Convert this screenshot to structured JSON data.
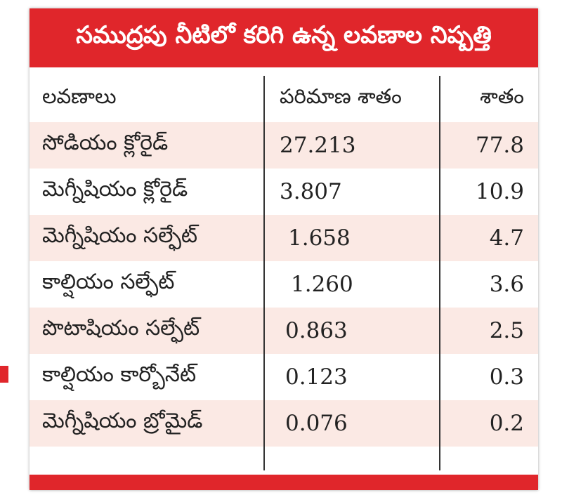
{
  "title": "సముద్రపు నీటిలో కరిగి ఉన్న లవణాల నిష్పత్తి",
  "columns": [
    "లవణాలు",
    "పరిమాణ శాతం",
    "శాతం"
  ],
  "rows": [
    {
      "salt": "సోడియం క్లోరైడ్",
      "amount": "27.213",
      "percent": "77.8"
    },
    {
      "salt": "మెగ్నీషియం క్లోరైడ్",
      "amount": "3.807",
      "percent": "10.9"
    },
    {
      "salt": "మెగ్నీషియం సల్ఫేట్",
      "amount": "1.658",
      "percent": "4.7"
    },
    {
      "salt": "కాల్షియం సల్ఫేట్",
      "amount": "1.260",
      "percent": "3.6"
    },
    {
      "salt": "పొటాషియం సల్ఫేట్",
      "amount": "0.863",
      "percent": "2.5"
    },
    {
      "salt": "కాల్షియం కార్బోనేట్",
      "amount": "0.123",
      "percent": "0.3"
    },
    {
      "salt": "మెగ్నీషియం బ్రోమైడ్",
      "amount": "0.076",
      "percent": "0.2"
    }
  ],
  "colors": {
    "accent": "#e0262b",
    "row_shade": "#fbe9e4",
    "text": "#222222"
  }
}
